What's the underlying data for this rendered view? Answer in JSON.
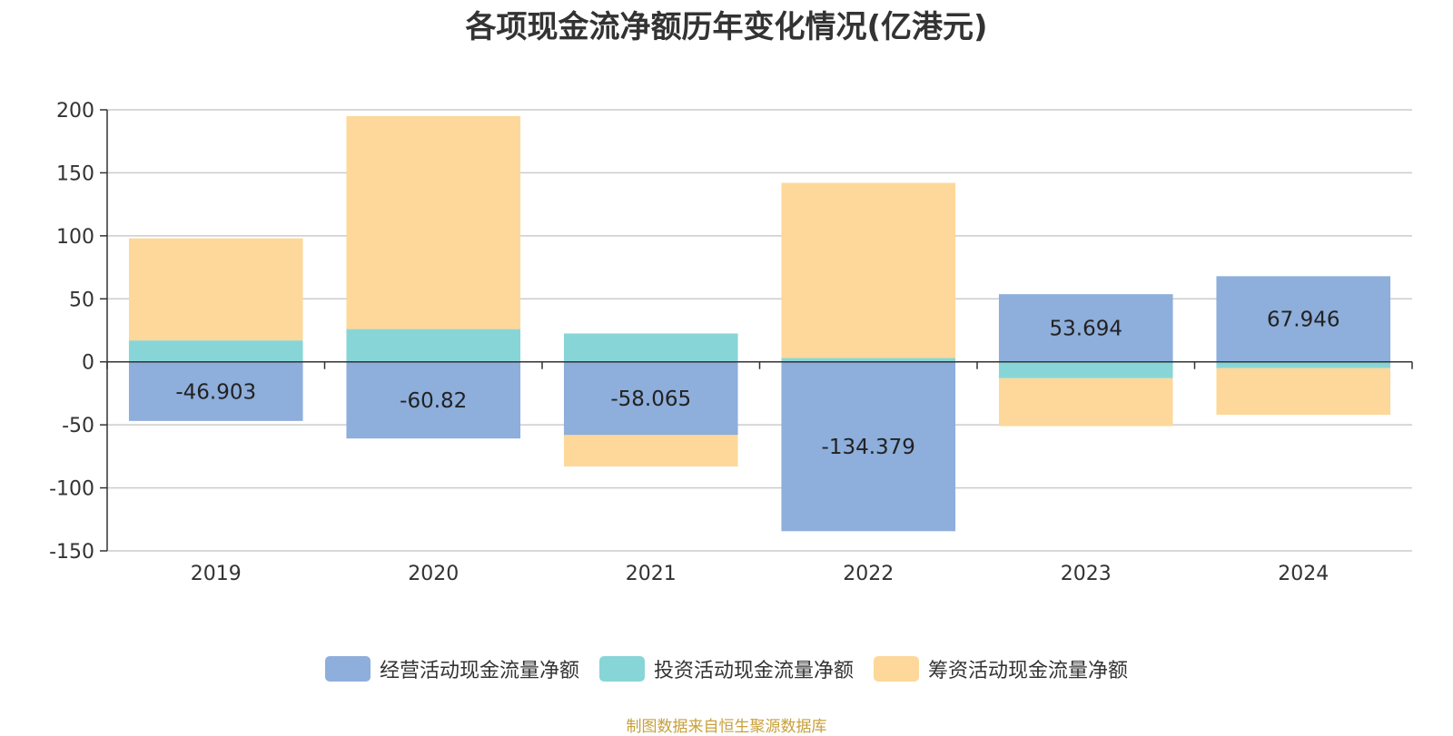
{
  "chart_data": {
    "type": "bar",
    "stacked": true,
    "title": "各项现金流净额历年变化情况(亿港元)",
    "categories": [
      "2019",
      "2020",
      "2021",
      "2022",
      "2023",
      "2024"
    ],
    "series": [
      {
        "name": "经营活动现金流量净额",
        "color": "#8eaedb",
        "values": [
          -46.903,
          -60.82,
          -58.065,
          -134.379,
          53.694,
          67.946
        ],
        "labels": [
          "-46.903",
          "-60.82",
          "-58.065",
          "-134.379",
          "53.694",
          "67.946"
        ]
      },
      {
        "name": "投资活动现金流量净额",
        "color": "#88d5d8",
        "values": [
          17,
          26,
          22.5,
          3,
          -13,
          -5
        ]
      },
      {
        "name": "筹资活动现金流量净额",
        "color": "#fdd89a",
        "values": [
          81,
          169,
          -25,
          139,
          -38,
          -37
        ]
      }
    ],
    "ylim": [
      -150,
      200
    ],
    "yticks": [
      200,
      150,
      100,
      50,
      0,
      -50,
      -100,
      -150
    ],
    "ytick_labels": [
      "200",
      "150",
      "100",
      "50",
      "0",
      "-50",
      "-100",
      "-150"
    ],
    "grid": true,
    "legend_position": "bottom"
  },
  "source_note": "制图数据来自恒生聚源数据库"
}
